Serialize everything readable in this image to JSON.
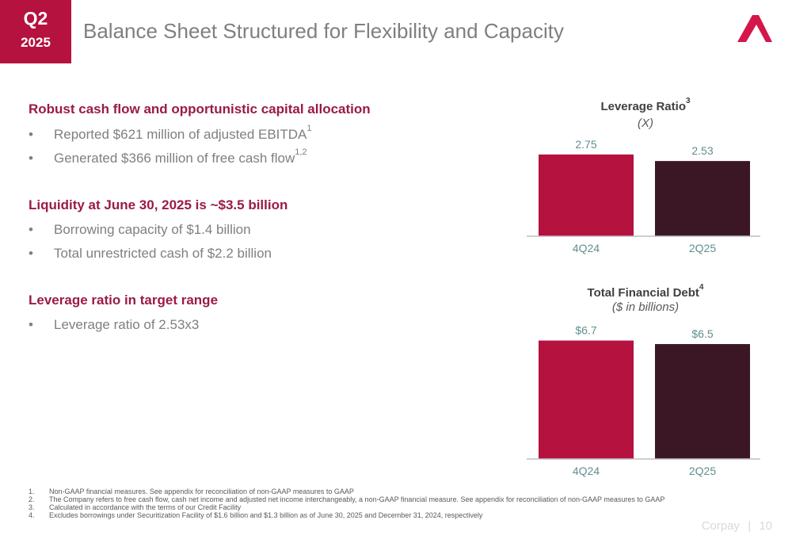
{
  "badge": {
    "quarter": "Q2",
    "year": "2025"
  },
  "title": "Balance Sheet Structured for Flexibility and Capacity",
  "logo": {
    "icon": "corpay-logo-icon",
    "color": "#d5164a"
  },
  "colors": {
    "crimson": "#b5123f",
    "dark": "#3b1726",
    "heading": "#9b1b43",
    "label": "#5f8f8f"
  },
  "sections": [
    {
      "heading": "Robust cash flow and opportunistic capital allocation",
      "bullets": [
        {
          "text": "Reported $621 million of adjusted EBITDA",
          "sup": "1"
        },
        {
          "text": "Generated $366 million of free cash flow",
          "sup": "1,2"
        }
      ]
    },
    {
      "heading": "Liquidity at June 30, 2025 is ~$3.5 billion",
      "bullets": [
        {
          "text": "Borrowing capacity of $1.4 billion",
          "sup": ""
        },
        {
          "text": "Total unrestricted cash of $2.2 billion",
          "sup": ""
        }
      ]
    },
    {
      "heading": "Leverage ratio in target range",
      "bullets": [
        {
          "text": "Leverage ratio of 2.53x3",
          "sup": ""
        }
      ]
    }
  ],
  "bullet_char": "•",
  "chart_data": [
    {
      "type": "bar",
      "title": "Leverage Ratio",
      "title_sup": "3",
      "subtitle": "(X)",
      "categories": [
        "4Q24",
        "2Q25"
      ],
      "values": [
        2.75,
        2.53
      ],
      "labels": [
        "2.75",
        "2.53"
      ],
      "bar_colors": [
        "#b5123f",
        "#3b1726"
      ]
    },
    {
      "type": "bar",
      "title": "Total Financial Debt",
      "title_sup": "4",
      "subtitle": "($ in billions)",
      "categories": [
        "4Q24",
        "2Q25"
      ],
      "values": [
        6.7,
        6.5
      ],
      "labels": [
        "$6.7",
        "$6.5"
      ],
      "bar_colors": [
        "#b5123f",
        "#3b1726"
      ]
    }
  ],
  "footnotes": [
    {
      "n": "1.",
      "text": "Non-GAAP financial measures. See appendix for reconciliation of non-GAAP measures to GAAP"
    },
    {
      "n": "2.",
      "text": "The Company refers to free cash flow, cash net income and adjusted net income interchangeably, a non-GAAP financial measure. See appendix for reconciliation of non-GAAP measures to GAAP"
    },
    {
      "n": "3.",
      "text": "Calculated in accordance with the terms of our Credit Facility"
    },
    {
      "n": "4.",
      "text": "Excludes borrowings under Securitization Facility of $1.6 billion and $1.3 billion as of June 30, 2025 and December 31, 2024, respectively"
    }
  ],
  "footer": {
    "brand": "Corpay",
    "separator": "|",
    "page": "10"
  }
}
